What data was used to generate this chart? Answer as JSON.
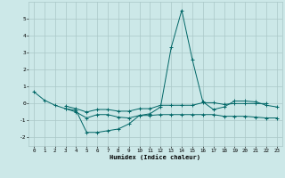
{
  "xlabel": "Humidex (Indice chaleur)",
  "x": [
    0,
    1,
    2,
    3,
    4,
    5,
    6,
    7,
    8,
    9,
    10,
    11,
    12,
    13,
    14,
    15,
    16,
    17,
    18,
    19,
    20,
    21,
    22,
    23
  ],
  "series": [
    [
      0.7,
      0.2,
      -0.1,
      -0.3,
      -0.4,
      -1.7,
      -1.7,
      -1.6,
      -1.5,
      -1.2,
      -0.7,
      -0.6,
      -0.2,
      3.3,
      5.5,
      2.6,
      0.1,
      -0.35,
      -0.2,
      0.15,
      0.15,
      0.1,
      -0.1,
      -0.2
    ],
    [
      null,
      null,
      null,
      -0.3,
      -0.5,
      -0.85,
      -0.65,
      -0.65,
      -0.8,
      -0.85,
      -0.7,
      -0.7,
      -0.65,
      -0.65,
      -0.65,
      -0.65,
      -0.65,
      -0.65,
      -0.75,
      -0.75,
      -0.75,
      -0.8,
      -0.85,
      -0.85
    ],
    [
      null,
      null,
      null,
      -0.15,
      -0.3,
      -0.5,
      -0.35,
      -0.35,
      -0.45,
      -0.45,
      -0.3,
      -0.3,
      -0.1,
      -0.1,
      -0.1,
      -0.1,
      0.05,
      0.05,
      -0.05,
      0.0,
      0.0,
      0.0,
      0.0,
      null
    ]
  ],
  "line_color": "#006666",
  "bg_color": "#cce8e8",
  "grid_color": "#aac8c8",
  "ylim": [
    -2.5,
    6.0
  ],
  "xlim": [
    -0.5,
    23.5
  ],
  "yticks": [
    -2,
    -1,
    0,
    1,
    2,
    3,
    4,
    5
  ],
  "xticks": [
    0,
    1,
    2,
    3,
    4,
    5,
    6,
    7,
    8,
    9,
    10,
    11,
    12,
    13,
    14,
    15,
    16,
    17,
    18,
    19,
    20,
    21,
    22,
    23
  ]
}
